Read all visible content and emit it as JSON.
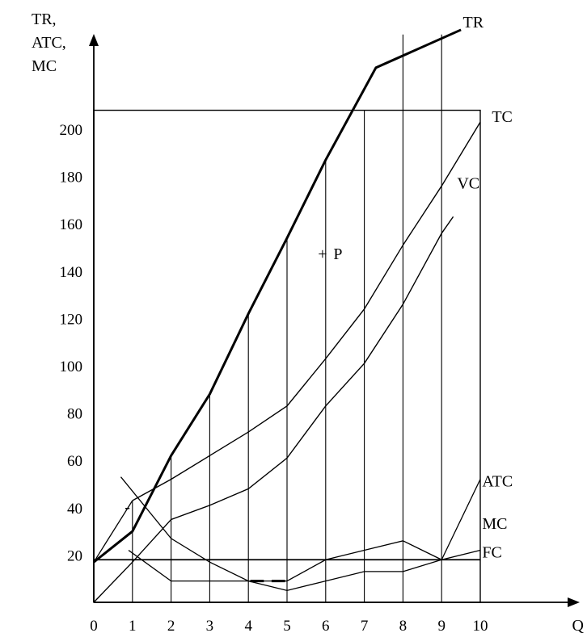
{
  "chart_data": {
    "type": "line",
    "xlabel": "Q",
    "ylabel": [
      "TR,",
      "ATC,",
      "MC"
    ],
    "x_ticks": [
      0,
      1,
      2,
      3,
      4,
      5,
      6,
      7,
      8,
      9,
      10
    ],
    "y_ticks": [
      20,
      40,
      60,
      80,
      100,
      120,
      140,
      160,
      180,
      200
    ],
    "xlim": [
      0,
      10
    ],
    "ylim": [
      0,
      220
    ],
    "series": [
      {
        "name": "TR",
        "points": [
          [
            0,
            17
          ],
          [
            1,
            30
          ],
          [
            2,
            62
          ],
          [
            3,
            88
          ],
          [
            4,
            122
          ],
          [
            5,
            154
          ],
          [
            6,
            187
          ],
          [
            7.3,
            226
          ],
          [
            9.5,
            242
          ]
        ],
        "stroke": "#000000",
        "width": 3
      },
      {
        "name": "TC",
        "points": [
          [
            1,
            43
          ],
          [
            2,
            52
          ],
          [
            3,
            62
          ],
          [
            4,
            72
          ],
          [
            5,
            83
          ],
          [
            6,
            103
          ],
          [
            7,
            124
          ],
          [
            8,
            151
          ],
          [
            9,
            176
          ],
          [
            10,
            203
          ]
        ],
        "stroke": "#000000",
        "width": 1.4
      },
      {
        "name": "VC",
        "points": [
          [
            0,
            0
          ],
          [
            1,
            17
          ],
          [
            2,
            35
          ],
          [
            3,
            41
          ],
          [
            4,
            48
          ],
          [
            5,
            61
          ],
          [
            6,
            83
          ],
          [
            7,
            101
          ],
          [
            8,
            126
          ],
          [
            9,
            156
          ],
          [
            9.3,
            163
          ]
        ],
        "stroke": "#000000",
        "width": 1.4
      },
      {
        "name": "ATC",
        "points": [
          [
            0.7,
            53
          ],
          [
            2,
            27
          ],
          [
            3,
            17
          ],
          [
            4,
            9
          ],
          [
            5,
            5
          ],
          [
            6,
            9
          ],
          [
            7,
            13
          ],
          [
            8,
            13
          ],
          [
            9,
            18
          ],
          [
            10,
            52
          ]
        ],
        "stroke": "#000000",
        "width": 1.3
      },
      {
        "name": "MC",
        "points": [
          [
            0.9,
            22
          ],
          [
            2,
            9
          ],
          [
            3,
            9
          ],
          [
            4,
            9
          ],
          [
            5,
            9
          ],
          [
            6,
            18
          ],
          [
            7,
            22
          ],
          [
            8,
            26
          ],
          [
            9,
            18
          ],
          [
            10,
            22
          ]
        ],
        "stroke": "#000000",
        "width": 1.3
      },
      {
        "name": "FC",
        "points": [
          [
            0,
            18
          ],
          [
            10,
            18
          ]
        ],
        "stroke": "#000000",
        "width": 1.7
      }
    ],
    "extra_segments": [
      {
        "name": "initial-cost-line",
        "points": [
          [
            0,
            17
          ],
          [
            1,
            43
          ]
        ],
        "width": 1.3
      },
      {
        "name": "dash-1",
        "points": [
          [
            4.05,
            9
          ],
          [
            4.4,
            9
          ]
        ],
        "width": 3
      },
      {
        "name": "dash-2",
        "points": [
          [
            4.6,
            9
          ],
          [
            4.95,
            9
          ]
        ],
        "width": 3
      }
    ],
    "frame": {
      "x": [
        0,
        10
      ],
      "y": [
        0,
        208
      ]
    },
    "vertical_bars": [
      {
        "x": 1,
        "y_top": 43
      },
      {
        "x": 2,
        "y_top": 62
      },
      {
        "x": 3,
        "y_top": 88
      },
      {
        "x": 4,
        "y_top": 122
      },
      {
        "x": 5,
        "y_top": 154
      },
      {
        "x": 6,
        "y_top": 187
      },
      {
        "x": 7,
        "y_top": 208
      },
      {
        "x": 8,
        "y_top": 240
      },
      {
        "x": 9,
        "y_top": 240
      }
    ],
    "annotations": [
      {
        "text": "+",
        "x": 5.8,
        "y": 145
      },
      {
        "text": "P",
        "x": 6.2,
        "y": 145
      },
      {
        "text": "-",
        "x": 0.8,
        "y": 38
      },
      {
        "text": "TR",
        "x": 9.55,
        "y": 243
      },
      {
        "text": "TC",
        "x": 10.3,
        "y": 203
      },
      {
        "text": "VC",
        "x": 9.4,
        "y": 175
      },
      {
        "text": "ATC",
        "x": 10.05,
        "y": 49
      },
      {
        "text": "MC",
        "x": 10.05,
        "y": 31
      },
      {
        "text": "FC",
        "x": 10.05,
        "y": 19
      }
    ],
    "legend": "none",
    "grid": false,
    "colors": {
      "background": "#ffffff",
      "ink": "#000000"
    }
  }
}
